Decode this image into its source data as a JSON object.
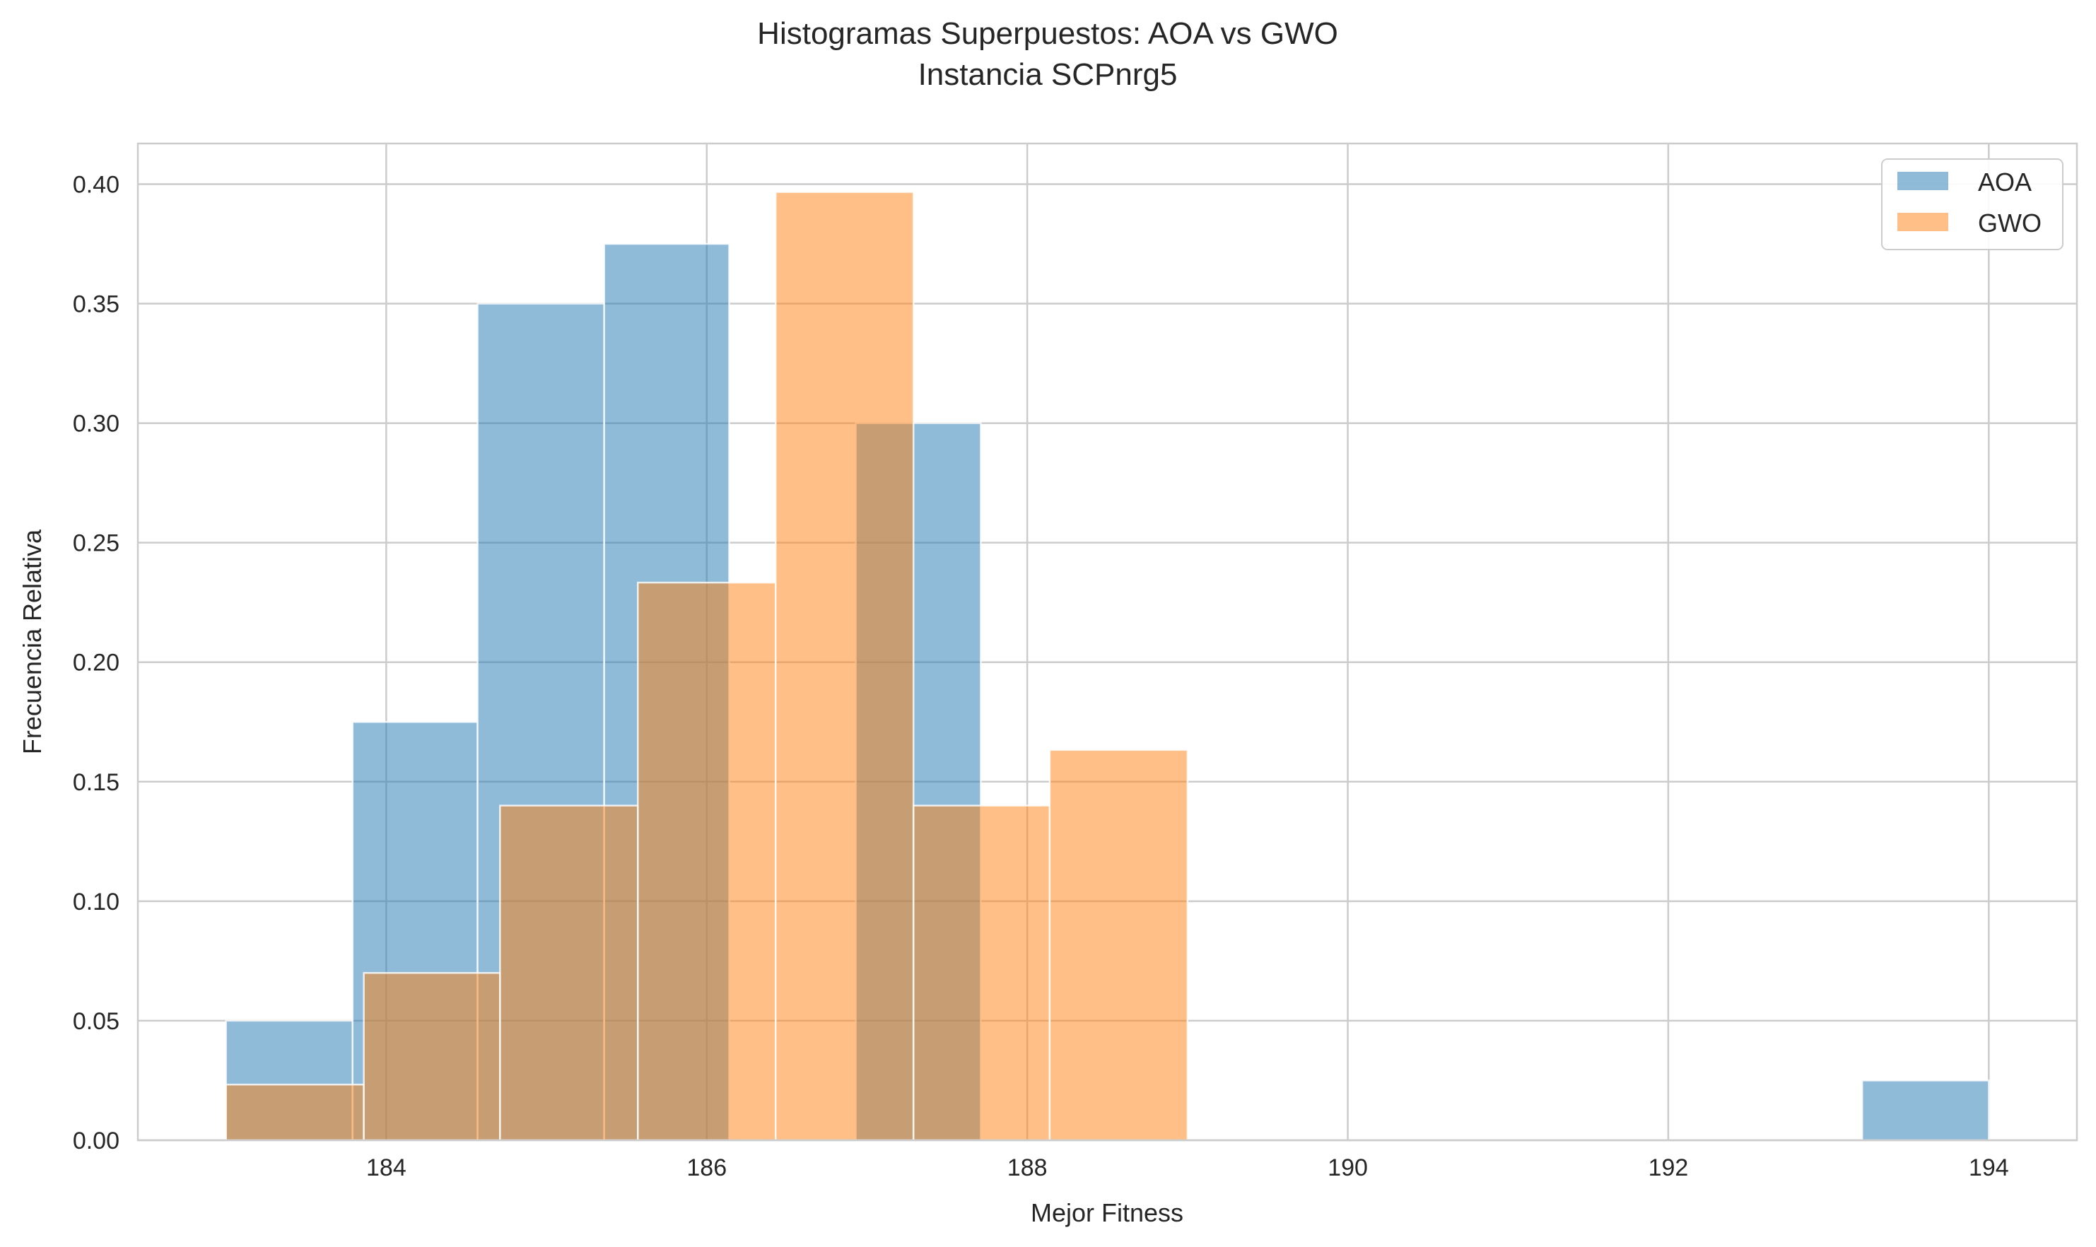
{
  "chart_data": {
    "type": "bar",
    "title": "Histogramas Superpuestos: AOA vs GWO",
    "subtitle": "Instancia SCPnrg5",
    "xlabel": "Mejor Fitness",
    "ylabel": "Frecuencia Relativa",
    "xlim": [
      182.45,
      194.55
    ],
    "ylim": [
      0,
      0.417
    ],
    "xticks": [
      "184",
      "186",
      "188",
      "190",
      "192",
      "194"
    ],
    "yticks": [
      "0.00",
      "0.05",
      "0.10",
      "0.15",
      "0.20",
      "0.25",
      "0.30",
      "0.35",
      "0.40"
    ],
    "grid": true,
    "legend_position": "top-right",
    "series": [
      {
        "name": "AOA",
        "color": "#1f77b4",
        "bins": [
          {
            "x0": 183.0,
            "x1": 183.79,
            "value": 0.05
          },
          {
            "x0": 183.79,
            "x1": 184.57,
            "value": 0.175
          },
          {
            "x0": 184.57,
            "x1": 185.36,
            "value": 0.35
          },
          {
            "x0": 185.36,
            "x1": 186.14,
            "value": 0.375
          },
          {
            "x0": 186.14,
            "x1": 186.93,
            "value": 0.0
          },
          {
            "x0": 186.93,
            "x1": 187.71,
            "value": 0.3
          },
          {
            "x0": 187.71,
            "x1": 188.5,
            "value": 0.0
          },
          {
            "x0": 188.5,
            "x1": 189.29,
            "value": 0.0
          },
          {
            "x0": 189.29,
            "x1": 190.07,
            "value": 0.0
          },
          {
            "x0": 190.07,
            "x1": 190.86,
            "value": 0.0
          },
          {
            "x0": 190.86,
            "x1": 191.64,
            "value": 0.0
          },
          {
            "x0": 191.64,
            "x1": 192.43,
            "value": 0.0
          },
          {
            "x0": 192.43,
            "x1": 193.21,
            "value": 0.0
          },
          {
            "x0": 193.21,
            "x1": 194.0,
            "value": 0.025
          }
        ]
      },
      {
        "name": "GWO",
        "color": "#ff7f0e",
        "bins": [
          {
            "x0": 183.0,
            "x1": 183.86,
            "value": 0.0233
          },
          {
            "x0": 183.86,
            "x1": 184.71,
            "value": 0.07
          },
          {
            "x0": 184.71,
            "x1": 185.57,
            "value": 0.14
          },
          {
            "x0": 185.57,
            "x1": 186.43,
            "value": 0.2333
          },
          {
            "x0": 186.43,
            "x1": 187.29,
            "value": 0.3967
          },
          {
            "x0": 187.29,
            "x1": 188.14,
            "value": 0.14
          },
          {
            "x0": 188.14,
            "x1": 189.0,
            "value": 0.1633
          }
        ]
      }
    ]
  }
}
